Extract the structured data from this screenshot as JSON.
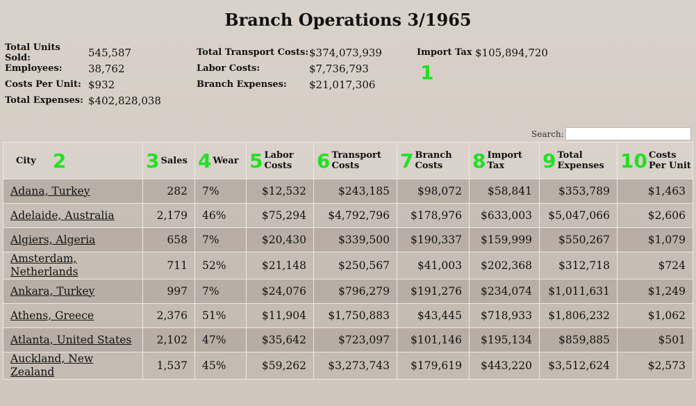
{
  "header": {
    "title": "Branch Operations 3/1965"
  },
  "summary": {
    "groups": [
      [
        {
          "label": "Total Units Sold:",
          "value": "545,587"
        },
        {
          "label": "Employees:",
          "value": "38,762"
        },
        {
          "label": "Costs Per Unit:",
          "value": "$932"
        },
        {
          "label": "Total Expenses:",
          "value": "$402,828,038"
        }
      ],
      [
        {
          "label": "Total Transport Costs:",
          "value": "$374,073,939"
        },
        {
          "label": "Labor Costs:",
          "value": "$7,736,793"
        },
        {
          "label": "Branch Expenses:",
          "value": "$21,017,306"
        }
      ],
      [
        {
          "label": "Import Tax",
          "value": "$105,894,720"
        }
      ]
    ],
    "marker": "1"
  },
  "search": {
    "label": "Search:"
  },
  "table": {
    "columns": [
      {
        "marker": "2",
        "label": "City"
      },
      {
        "marker": "3",
        "label": "Sales"
      },
      {
        "marker": "4",
        "label": "Wear"
      },
      {
        "marker": "5",
        "label": "Labor Costs"
      },
      {
        "marker": "6",
        "label": "Transport Costs"
      },
      {
        "marker": "7",
        "label": "Branch Costs"
      },
      {
        "marker": "8",
        "label": "Import Tax"
      },
      {
        "marker": "9",
        "label": "Total Expenses"
      },
      {
        "marker": "10",
        "label": "Costs Per Unit"
      }
    ],
    "rows": [
      [
        "Adana, Turkey",
        "282",
        "7%",
        "$12,532",
        "$243,185",
        "$98,072",
        "$58,841",
        "$353,789",
        "$1,463"
      ],
      [
        "Adelaide, Australia",
        "2,179",
        "46%",
        "$75,294",
        "$4,792,796",
        "$178,976",
        "$633,003",
        "$5,047,066",
        "$2,606"
      ],
      [
        "Algiers, Algeria",
        "658",
        "7%",
        "$20,430",
        "$339,500",
        "$190,337",
        "$159,999",
        "$550,267",
        "$1,079"
      ],
      [
        "Amsterdam, Netherlands",
        "711",
        "52%",
        "$21,148",
        "$250,567",
        "$41,003",
        "$202,368",
        "$312,718",
        "$724"
      ],
      [
        "Ankara, Turkey",
        "997",
        "7%",
        "$24,076",
        "$796,279",
        "$191,276",
        "$234,074",
        "$1,011,631",
        "$1,249"
      ],
      [
        "Athens, Greece",
        "2,376",
        "51%",
        "$11,904",
        "$1,750,883",
        "$43,445",
        "$718,933",
        "$1,806,232",
        "$1,062"
      ],
      [
        "Atlanta, United States",
        "2,102",
        "47%",
        "$35,642",
        "$723,097",
        "$101,146",
        "$195,134",
        "$859,885",
        "$501"
      ],
      [
        "Auckland, New Zealand",
        "1,537",
        "45%",
        "$59,262",
        "$3,273,743",
        "$179,619",
        "$443,220",
        "$3,512,624",
        "$2,573"
      ]
    ]
  }
}
